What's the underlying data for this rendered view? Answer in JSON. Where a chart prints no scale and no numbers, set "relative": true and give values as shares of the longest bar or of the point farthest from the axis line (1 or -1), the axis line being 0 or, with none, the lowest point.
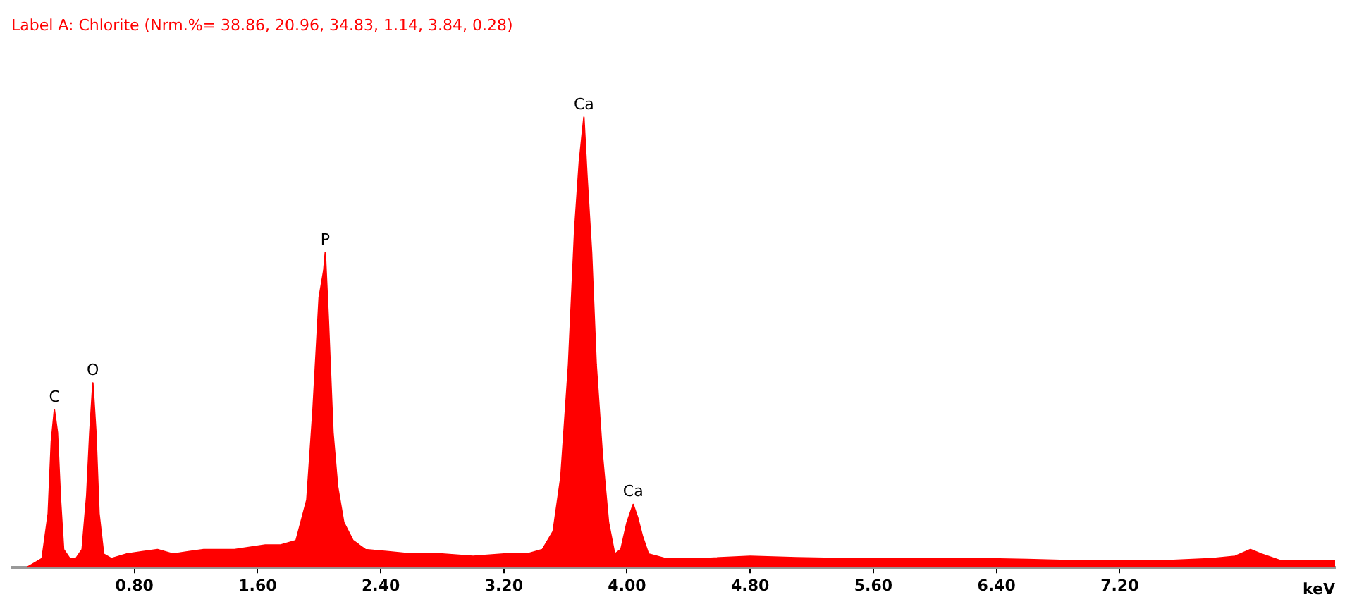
{
  "chart_data": {
    "type": "area",
    "subtitle": "Label A: Chlorite (Nrm.%= 38.86, 20.96, 34.83, 1.14, 3.84, 0.28)",
    "xlabel": "keV",
    "relative": true,
    "x": [
      0.1,
      0.15,
      0.2,
      0.24,
      0.26,
      0.28,
      0.3,
      0.32,
      0.34,
      0.38,
      0.42,
      0.46,
      0.49,
      0.51,
      0.53,
      0.55,
      0.57,
      0.6,
      0.65,
      0.75,
      0.85,
      0.95,
      1.05,
      1.15,
      1.25,
      1.35,
      1.45,
      1.55,
      1.65,
      1.75,
      1.85,
      1.92,
      1.96,
      2.0,
      2.03,
      2.04,
      2.06,
      2.09,
      2.12,
      2.16,
      2.22,
      2.3,
      2.45,
      2.6,
      2.8,
      3.0,
      3.2,
      3.35,
      3.45,
      3.52,
      3.57,
      3.62,
      3.66,
      3.69,
      3.72,
      3.74,
      3.77,
      3.8,
      3.84,
      3.88,
      3.92,
      3.96,
      4.0,
      4.02,
      4.04,
      4.07,
      4.1,
      4.14,
      4.25,
      4.5,
      4.8,
      5.1,
      5.4,
      5.7,
      6.0,
      6.3,
      6.6,
      6.9,
      7.2,
      7.5,
      7.8,
      7.95,
      8.05,
      8.12,
      8.25,
      8.5,
      8.6
    ],
    "series": [
      {
        "color": "#ff0000",
        "values": [
          0.0,
          0.01,
          0.02,
          0.12,
          0.28,
          0.35,
          0.3,
          0.15,
          0.04,
          0.02,
          0.02,
          0.04,
          0.16,
          0.3,
          0.41,
          0.3,
          0.12,
          0.03,
          0.02,
          0.03,
          0.035,
          0.04,
          0.03,
          0.035,
          0.04,
          0.04,
          0.04,
          0.045,
          0.05,
          0.05,
          0.06,
          0.15,
          0.35,
          0.6,
          0.66,
          0.7,
          0.55,
          0.3,
          0.18,
          0.1,
          0.06,
          0.04,
          0.035,
          0.03,
          0.03,
          0.025,
          0.03,
          0.03,
          0.04,
          0.08,
          0.2,
          0.45,
          0.75,
          0.9,
          1.0,
          0.87,
          0.7,
          0.45,
          0.25,
          0.1,
          0.03,
          0.04,
          0.1,
          0.12,
          0.14,
          0.11,
          0.07,
          0.03,
          0.02,
          0.02,
          0.025,
          0.022,
          0.02,
          0.02,
          0.02,
          0.02,
          0.018,
          0.015,
          0.015,
          0.015,
          0.02,
          0.025,
          0.04,
          0.03,
          0.015,
          0.015,
          0.015
        ]
      }
    ],
    "xlim": [
      0,
      8.6
    ],
    "xticks": [
      {
        "value": 0.8,
        "label": "0.80"
      },
      {
        "value": 1.6,
        "label": "1.60"
      },
      {
        "value": 2.4,
        "label": "2.40"
      },
      {
        "value": 3.2,
        "label": "3.20"
      },
      {
        "value": 4.0,
        "label": "4.00"
      },
      {
        "value": 4.8,
        "label": "4.80"
      },
      {
        "value": 5.6,
        "label": "5.60"
      },
      {
        "value": 6.4,
        "label": "6.40"
      },
      {
        "value": 7.2,
        "label": "7.20"
      }
    ],
    "annotations": [
      {
        "text": "C",
        "x": 0.28,
        "y": 0.35
      },
      {
        "text": "O",
        "x": 0.53,
        "y": 0.41
      },
      {
        "text": "P",
        "x": 2.04,
        "y": 0.7
      },
      {
        "text": "Ca",
        "x": 3.72,
        "y": 1.0
      },
      {
        "text": "Ca",
        "x": 4.04,
        "y": 0.14
      }
    ]
  }
}
